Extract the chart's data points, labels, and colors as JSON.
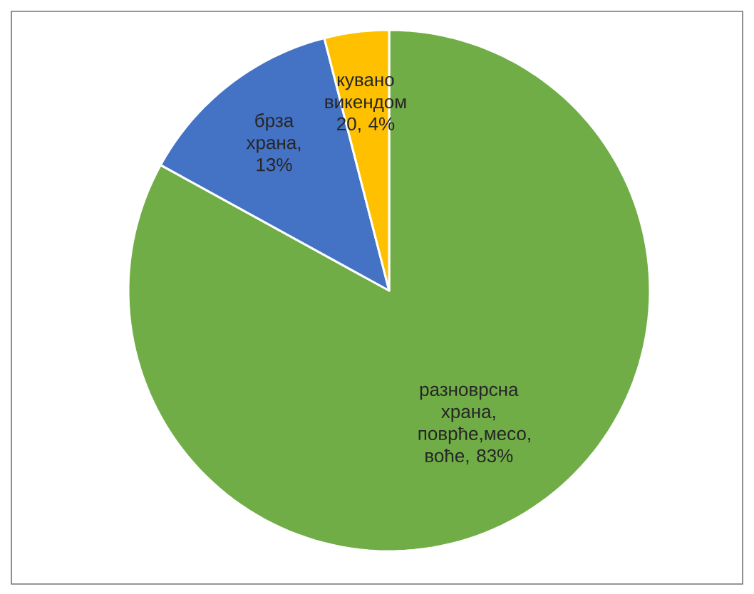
{
  "chart_data": {
    "type": "pie",
    "categories": [
      "разноврсна храна, поврће,месо, воће",
      "брза храна",
      "кувано викендом 20"
    ],
    "values": [
      83,
      13,
      4
    ],
    "value_labels": [
      ", 83%",
      ", 13%",
      ", 4%"
    ],
    "colors": [
      "#70ad47",
      "#4472c4",
      "#ffc000"
    ],
    "legend": false
  }
}
